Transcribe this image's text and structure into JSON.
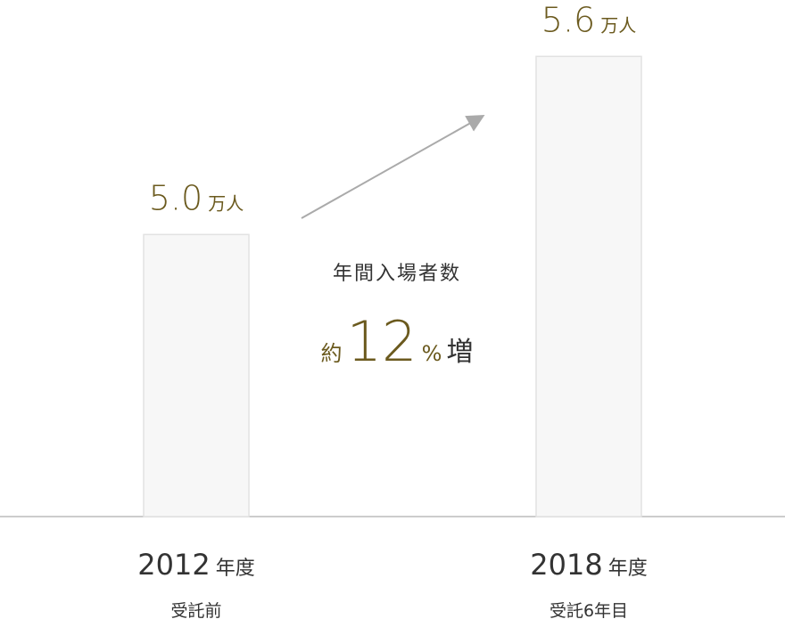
{
  "chart_data": {
    "type": "bar",
    "categories": [
      "2012",
      "2018"
    ],
    "category_unit": "年度",
    "subcategories": [
      "受託前",
      "受託6年目"
    ],
    "values": [
      5.0,
      5.6
    ],
    "value_labels": [
      "5.0",
      "5.6"
    ],
    "value_unit": "万人",
    "color": "#f7f7f7",
    "ylim": [
      4.05,
      5.7
    ],
    "annotation": {
      "label": "年間入場者数",
      "prefix": "約",
      "value": 12,
      "unit": "%",
      "suffix": "増"
    }
  }
}
